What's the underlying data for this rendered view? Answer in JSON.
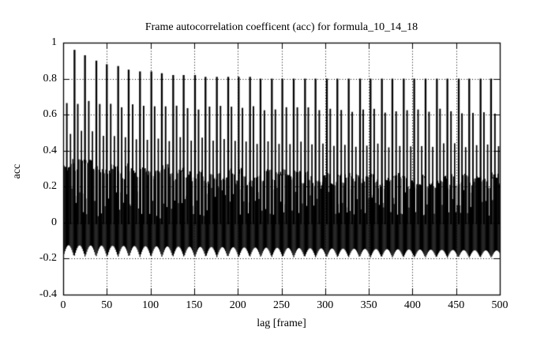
{
  "title": "Frame autocorrelation coefficent (acc) for formula_10_14_18",
  "axes": {
    "x": {
      "label": "lag [frame]",
      "min": 0,
      "max": 500,
      "tick_values": [
        0,
        50,
        100,
        150,
        200,
        250,
        300,
        350,
        400,
        450,
        500
      ],
      "tick_labels": [
        "0",
        "50",
        "100",
        "150",
        "200",
        "250",
        "300",
        "350",
        "400",
        "450",
        "500"
      ]
    },
    "y": {
      "label": "acc",
      "min": -0.4,
      "max": 1,
      "tick_values": [
        -0.4,
        -0.2,
        0,
        0.2,
        0.4,
        0.6,
        0.8,
        1
      ],
      "tick_labels": [
        "-0.4",
        "-0.2",
        "0",
        "0.2",
        "0.4",
        "0.6",
        "0.8",
        "1"
      ]
    }
  },
  "colors": {
    "foreground": "#000000",
    "background": "#ffffff"
  },
  "chart_data": {
    "type": "line",
    "style": "gnuplot-style impulse (stem) plot, black impulses on white, dotted grid at every major tick, mirrored inward tick marks on all four borders",
    "title": "Frame autocorrelation coefficent (acc) for formula_10_14_18",
    "xlabel": "lag [frame]",
    "ylabel": "acc",
    "xlim": [
      0,
      500
    ],
    "ylim": [
      -0.4,
      1
    ],
    "grid": "dotted",
    "legend": "none",
    "tall_peaks": {
      "comment": "dominant autocorrelation peaks, one roughly every 12.57 frames; peak height decays from ~0.96 at lag 13 toward a plateau of ~0.80",
      "points": [
        [
          13,
          0.96
        ],
        [
          25,
          0.93
        ],
        [
          38,
          0.9
        ],
        [
          50,
          0.88
        ],
        [
          63,
          0.87
        ],
        [
          75,
          0.85
        ],
        [
          88,
          0.84
        ],
        [
          101,
          0.84
        ],
        [
          113,
          0.83
        ],
        [
          126,
          0.82
        ],
        [
          138,
          0.82
        ],
        [
          151,
          0.82
        ],
        [
          163,
          0.81
        ],
        [
          176,
          0.81
        ],
        [
          189,
          0.81
        ],
        [
          201,
          0.81
        ],
        [
          214,
          0.81
        ],
        [
          226,
          0.8
        ],
        [
          239,
          0.8
        ],
        [
          251,
          0.8
        ],
        [
          264,
          0.8
        ],
        [
          277,
          0.8
        ],
        [
          289,
          0.8
        ],
        [
          302,
          0.8
        ],
        [
          314,
          0.8
        ],
        [
          327,
          0.8
        ],
        [
          340,
          0.8
        ],
        [
          352,
          0.8
        ],
        [
          365,
          0.8
        ],
        [
          377,
          0.8
        ],
        [
          390,
          0.8
        ],
        [
          402,
          0.8
        ],
        [
          415,
          0.8
        ],
        [
          428,
          0.8
        ],
        [
          440,
          0.8
        ],
        [
          453,
          0.8
        ],
        [
          465,
          0.8
        ],
        [
          478,
          0.8
        ],
        [
          490,
          0.8
        ]
      ]
    },
    "secondary_peaks": {
      "comment": "between tall peaks, secondary peaks occur about every 4.19 frames in a repeating cycle tall / medium-high / medium-low",
      "medium_high_height": "≈0.67 at lag 4 decaying to ≈0.62 at lag 500",
      "medium_low_height": "≈0.50 at left decaying to ≈0.42 at right"
    },
    "dense_band": {
      "comment": "solid black mass of impulses at every lag; positive tops ≈0.33 at lag 0 decaying to ≈0.23 at lag 500 with ragged per-lag variation and thin white notches; negative minima form a scalloped bottom edge",
      "top_envelope": "0.225 + 0.105*exp(-3*lag/500)",
      "bottom_envelope": "shallow level -0.125→-0.155, cusps every 12.57 frames reaching -0.19→-0.195 (scalloped, cusp-down)"
    },
    "render_params": {
      "sub_period": 4.19,
      "tall_width": 2.3,
      "mediumA": {
        "base": 0.615,
        "amp": 0.055,
        "decay": 2.5,
        "width": 1.9
      },
      "mediumB": {
        "base": 0.415,
        "amp": 0.09,
        "decay": 2.2,
        "width": 1.7
      },
      "band_top": {
        "base": 0.225,
        "amp": 0.105,
        "decay": 3.0,
        "cell_jitter": 0.08,
        "lag_jitter": 0.03
      },
      "notch": {
        "offset": 2,
        "min_top": 0.03,
        "rand_top": 0.17,
        "probability": 0.75
      },
      "neg_env": {
        "shallow_base": -0.125,
        "shallow_slope": -0.03,
        "range_base": 0.065,
        "range_slope": -0.025,
        "period": 12.57
      },
      "stem_width": 1.3,
      "white_notch": {
        "probability": 0.55,
        "min_depth": 0.02,
        "rand_depth": 0.13,
        "width": 1.0,
        "dx": 1.9
      }
    }
  }
}
